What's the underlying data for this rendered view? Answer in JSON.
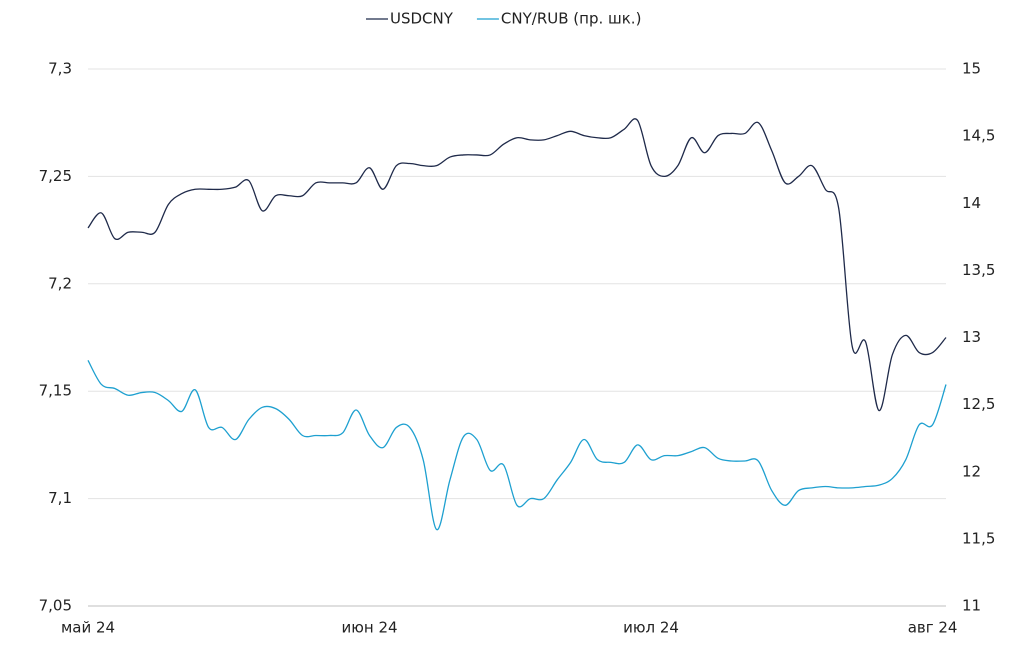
{
  "chart_data": {
    "type": "line",
    "categories": [
      "май 24",
      null,
      null,
      null,
      null,
      null,
      null,
      null,
      null,
      null,
      null,
      null,
      null,
      null,
      null,
      null,
      null,
      null,
      null,
      null,
      null,
      "июн 24",
      null,
      null,
      null,
      null,
      null,
      null,
      null,
      null,
      null,
      null,
      null,
      null,
      null,
      null,
      null,
      null,
      null,
      null,
      null,
      null,
      "июл 24",
      null,
      null,
      null,
      null,
      null,
      null,
      null,
      null,
      null,
      null,
      null,
      null,
      null,
      null,
      null,
      null,
      null,
      null,
      null,
      null,
      "авг 24",
      null
    ],
    "series": [
      {
        "name": "USDCNY",
        "color": "#1f2a4a",
        "values": [
          7.226,
          7.233,
          7.221,
          7.224,
          7.224,
          7.224,
          7.237,
          7.242,
          7.244,
          7.244,
          7.244,
          7.245,
          7.248,
          7.234,
          7.241,
          7.241,
          7.241,
          7.247,
          7.247,
          7.247,
          7.247,
          7.254,
          7.244,
          7.255,
          7.256,
          7.255,
          7.255,
          7.259,
          7.26,
          7.26,
          7.26,
          7.265,
          7.268,
          7.267,
          7.267,
          7.269,
          7.271,
          7.269,
          7.268,
          7.268,
          7.272,
          7.276,
          7.255,
          7.25,
          7.255,
          7.268,
          7.261,
          7.269,
          7.27,
          7.27,
          7.275,
          7.262,
          7.247,
          7.25,
          7.255,
          7.244,
          7.235,
          7.171,
          7.173,
          7.141,
          7.167,
          7.176,
          7.168,
          7.168,
          7.175
        ]
      },
      {
        "name": "CNY/RUB (пр. шк.)",
        "color": "#1ea0d0",
        "axis": "y2",
        "values": [
          12.83,
          12.65,
          12.62,
          12.57,
          12.59,
          12.59,
          12.53,
          12.45,
          12.61,
          12.33,
          12.33,
          12.24,
          12.39,
          12.48,
          12.47,
          12.39,
          12.27,
          12.27,
          12.27,
          12.29,
          12.46,
          12.27,
          12.18,
          12.33,
          12.33,
          12.09,
          11.57,
          11.94,
          12.26,
          12.24,
          12.01,
          12.05,
          11.75,
          11.8,
          11.8,
          11.94,
          12.07,
          12.24,
          12.09,
          12.07,
          12.07,
          12.2,
          12.09,
          12.12,
          12.12,
          12.15,
          12.18,
          12.1,
          12.08,
          12.08,
          12.08,
          11.86,
          11.75,
          11.86,
          11.88,
          11.89,
          11.88,
          11.88,
          11.89,
          11.9,
          11.95,
          12.09,
          12.35,
          12.35,
          12.65
        ]
      }
    ],
    "ylim": [
      7.05,
      7.3
    ],
    "yticks": [
      {
        "value": 7.05,
        "label": "7,05"
      },
      {
        "value": 7.1,
        "label": "7,1"
      },
      {
        "value": 7.15,
        "label": "7,15"
      },
      {
        "value": 7.2,
        "label": "7,2"
      },
      {
        "value": 7.25,
        "label": "7,25"
      },
      {
        "value": 7.3,
        "label": "7,3"
      }
    ],
    "y2lim": [
      11,
      15
    ],
    "y2ticks": [
      11,
      {
        "value": 11.5,
        "label": "11,5"
      },
      12,
      {
        "value": 12.5,
        "label": "12,5"
      },
      13,
      {
        "value": 13.5,
        "label": "13,5"
      },
      14,
      {
        "value": 14.5,
        "label": "14,5"
      },
      15
    ],
    "grid": true,
    "legend": "top"
  }
}
